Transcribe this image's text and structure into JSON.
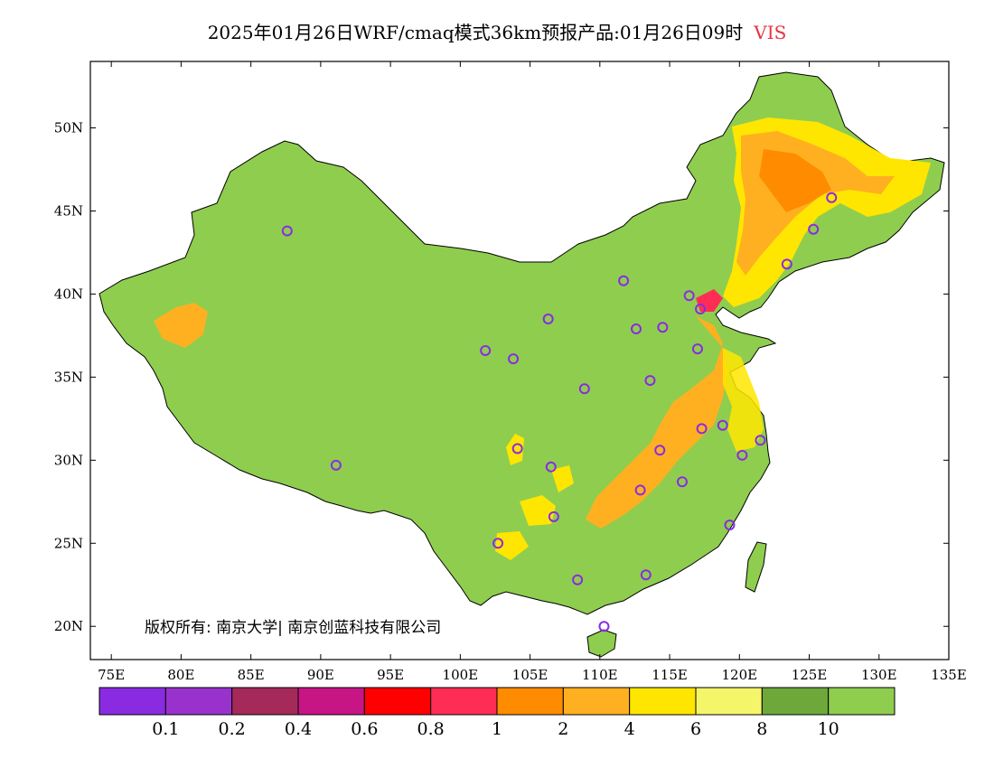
{
  "header": {
    "title": "2025年01月26日WRF/cmaq模式36km预报产品:01月26日09时",
    "variable": "VIS"
  },
  "map": {
    "lon_range": [
      73.5,
      135
    ],
    "lat_range": [
      18,
      54
    ],
    "lon_ticks": [
      "75E",
      "80E",
      "85E",
      "90E",
      "95E",
      "100E",
      "105E",
      "110E",
      "115E",
      "120E",
      "125E",
      "130E",
      "135E"
    ],
    "lat_ticks": [
      "20N",
      "25N",
      "30N",
      "35N",
      "40N",
      "45N",
      "50N"
    ],
    "base_fill_color": "#8fcd4f",
    "outside_color": "#ffffff"
  },
  "colorbar": {
    "colors": [
      "#8a2be2",
      "#9932cc",
      "#a52a5a",
      "#c71585",
      "#ff0000",
      "#ff2d55",
      "#ff8c00",
      "#ffb020",
      "#ffe600",
      "#f5f56a",
      "#6ea83a",
      "#8fcd4f"
    ],
    "labels": [
      "0.1",
      "0.2",
      "0.4",
      "0.6",
      "0.8",
      "1",
      "2",
      "4",
      "6",
      "8",
      "10"
    ]
  },
  "cities": [
    {
      "lon": 87.6,
      "lat": 43.8
    },
    {
      "lon": 91.1,
      "lat": 29.7
    },
    {
      "lon": 101.8,
      "lat": 36.6
    },
    {
      "lon": 103.8,
      "lat": 36.1
    },
    {
      "lon": 106.3,
      "lat": 38.5
    },
    {
      "lon": 104.1,
      "lat": 30.7
    },
    {
      "lon": 106.5,
      "lat": 29.6
    },
    {
      "lon": 106.7,
      "lat": 26.6
    },
    {
      "lon": 102.7,
      "lat": 25.0
    },
    {
      "lon": 108.4,
      "lat": 22.8
    },
    {
      "lon": 110.3,
      "lat": 20.0
    },
    {
      "lon": 113.3,
      "lat": 23.1
    },
    {
      "lon": 108.9,
      "lat": 34.3
    },
    {
      "lon": 111.7,
      "lat": 40.8
    },
    {
      "lon": 112.6,
      "lat": 37.9
    },
    {
      "lon": 114.5,
      "lat": 38.0
    },
    {
      "lon": 113.6,
      "lat": 34.8
    },
    {
      "lon": 114.3,
      "lat": 30.6
    },
    {
      "lon": 112.9,
      "lat": 28.2
    },
    {
      "lon": 115.9,
      "lat": 28.7
    },
    {
      "lon": 117.3,
      "lat": 31.9
    },
    {
      "lon": 118.8,
      "lat": 32.1
    },
    {
      "lon": 120.2,
      "lat": 30.3
    },
    {
      "lon": 121.5,
      "lat": 31.2
    },
    {
      "lon": 119.3,
      "lat": 26.1
    },
    {
      "lon": 117.0,
      "lat": 36.7
    },
    {
      "lon": 117.2,
      "lat": 39.1
    },
    {
      "lon": 116.4,
      "lat": 39.9
    },
    {
      "lon": 123.4,
      "lat": 41.8
    },
    {
      "lon": 125.3,
      "lat": 43.9
    },
    {
      "lon": 126.6,
      "lat": 45.8
    }
  ],
  "footer": {
    "copyright": "版权所有: 南京大学| 南京创蓝科技有限公司"
  }
}
